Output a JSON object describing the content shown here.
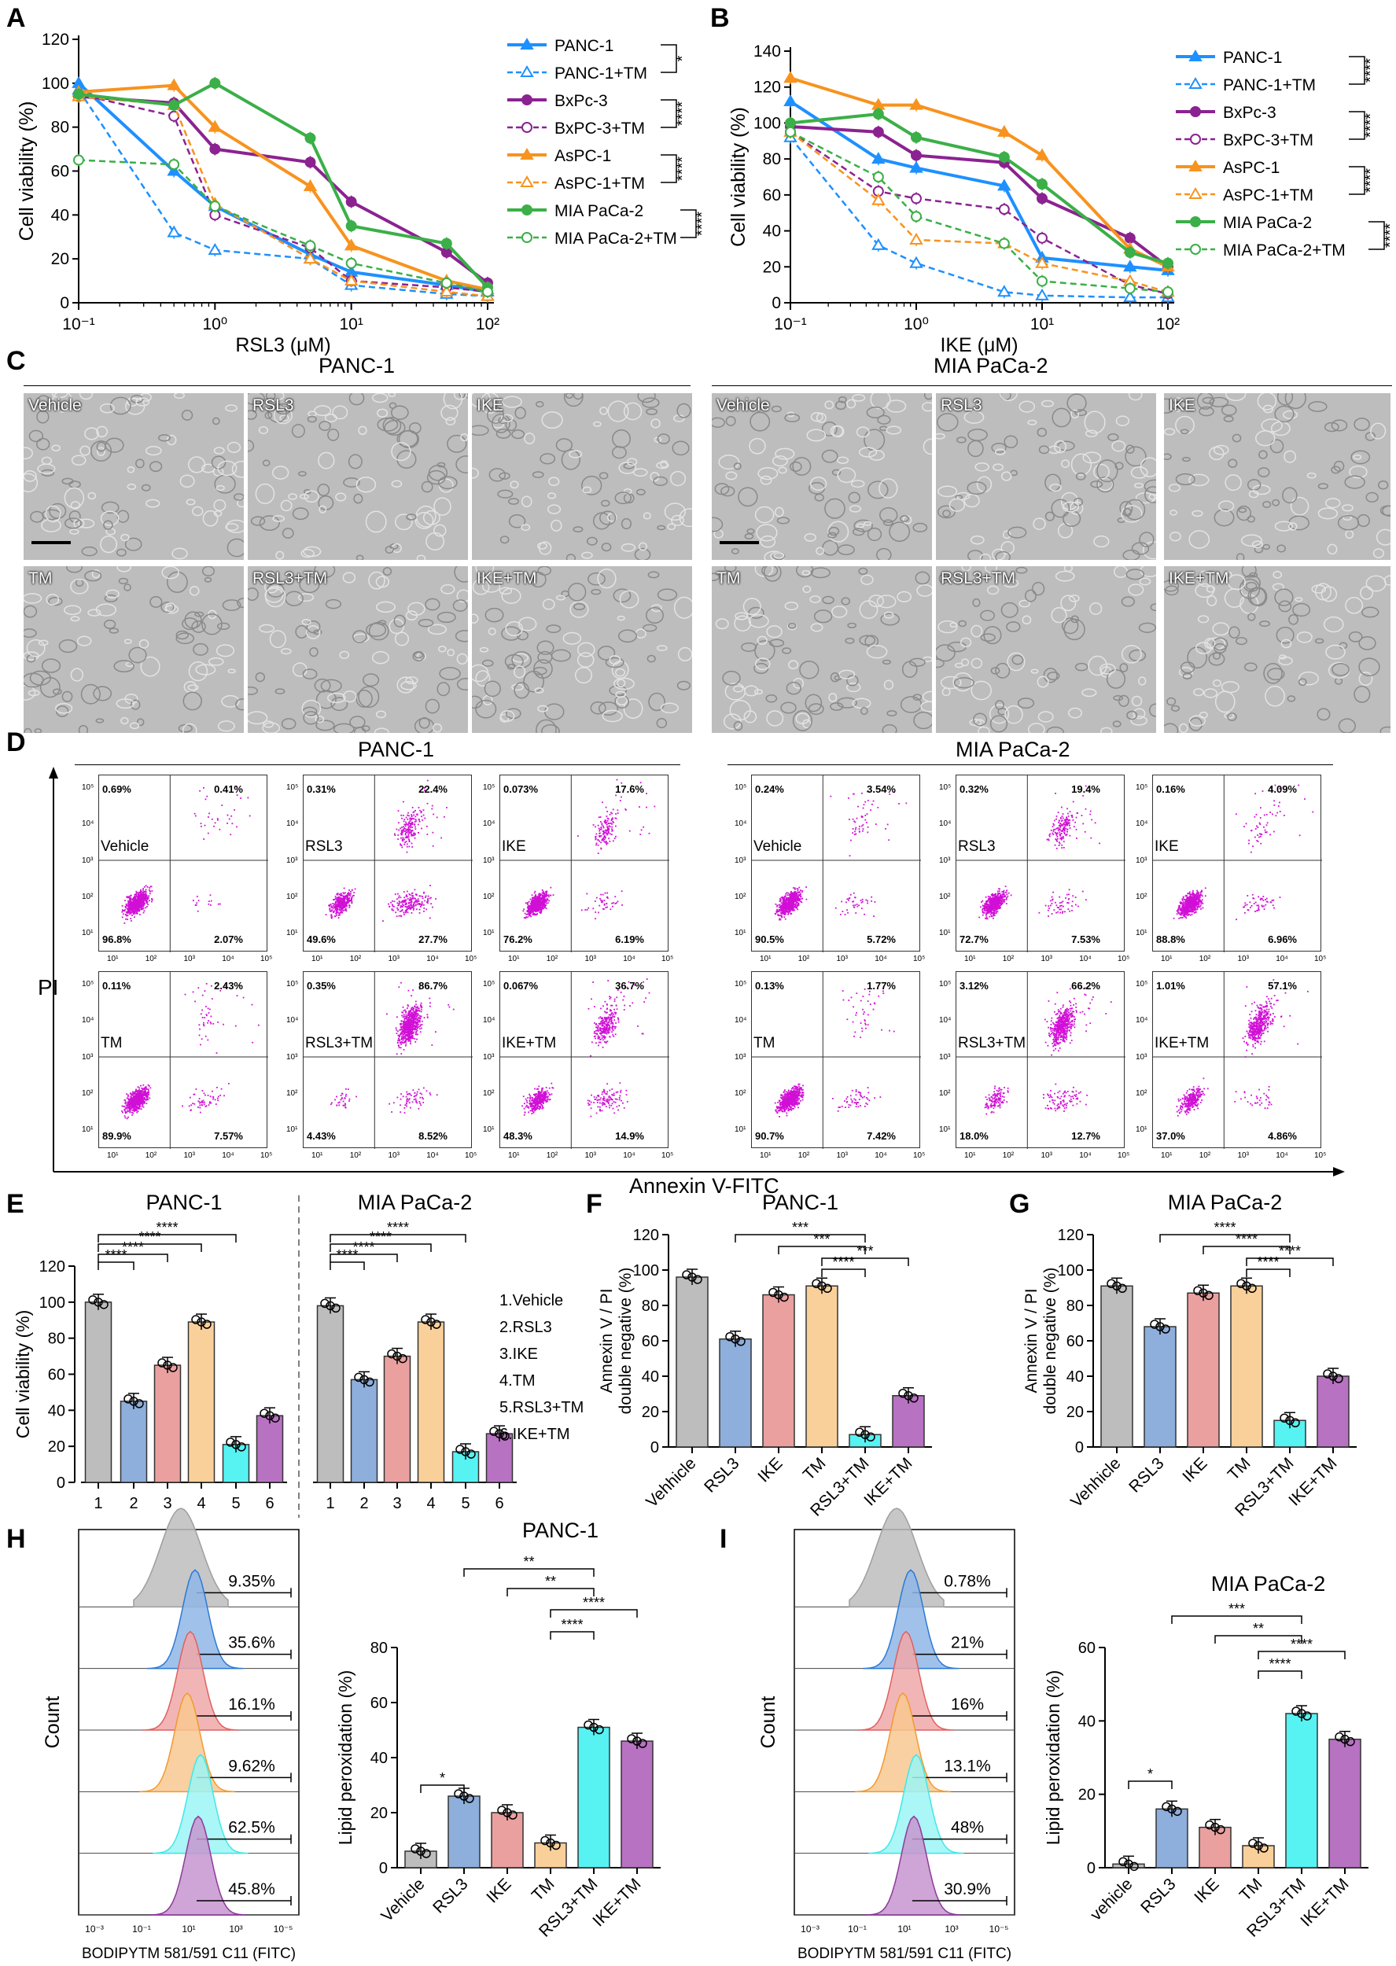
{
  "panels": {
    "A": "A",
    "B": "B",
    "C": "C",
    "D": "D",
    "E": "E",
    "F": "F",
    "G": "G",
    "H": "H",
    "I": "I"
  },
  "colors": {
    "panc1": "#1E90FF",
    "bxpc3": "#8B2291",
    "aspc1": "#F7931E",
    "miapaca2": "#3BAF48",
    "gray": "#BDBDBD",
    "blue": "#8EAEDB",
    "red": "#EBA0A0",
    "orange": "#FAD09A",
    "cyan": "#57F2F2",
    "purple": "#B772C2",
    "dot": "#D10FD6"
  },
  "legendA": [
    "PANC-1",
    "PANC-1+TM",
    "BxPc-3",
    "BxPC-3+TM",
    "AsPC-1",
    "AsPC-1+TM",
    "MIA PaCa-2",
    "MIA PaCa-2+TM"
  ],
  "legendB": [
    "PANC-1",
    "PANC-1+TM",
    "BxPc-3",
    "BxPC-3+TM",
    "AsPC-1",
    "AsPC-1+TM",
    "MIA PaCa-2",
    "MIA PaCa-2+TM"
  ],
  "sigA": [
    "*",
    "****",
    "****",
    "****"
  ],
  "sigB": [
    "****",
    "****",
    "****",
    "****"
  ],
  "chart_data": [
    {
      "panel": "A",
      "type": "line",
      "xlabel": "RSL3 (μM)",
      "ylabel": "Cell viability (%)",
      "xscale": "log",
      "xlim": [
        0.1,
        100
      ],
      "ylim": [
        0,
        120
      ],
      "yticks": [
        "0",
        "20",
        "40",
        "60",
        "80",
        "100",
        "120"
      ],
      "xticks": [
        "10⁻¹",
        "10⁰",
        "10¹",
        "10²"
      ],
      "x": [
        0.1,
        0.5,
        1,
        5,
        10,
        50,
        100
      ],
      "series": [
        {
          "name": "PANC-1",
          "values": [
            100,
            60,
            44,
            22,
            14,
            8,
            5
          ]
        },
        {
          "name": "PANC-1+TM",
          "values": [
            97,
            32,
            24,
            20,
            8,
            4,
            3
          ]
        },
        {
          "name": "BxPc-3",
          "values": [
            94,
            91,
            70,
            64,
            46,
            23,
            9
          ]
        },
        {
          "name": "BxPC-3+TM",
          "values": [
            95,
            85,
            40,
            25,
            10,
            7,
            5
          ]
        },
        {
          "name": "AsPC-1",
          "values": [
            96,
            99,
            80,
            53,
            26,
            10,
            6
          ]
        },
        {
          "name": "AsPC-1+TM",
          "values": [
            94,
            90,
            45,
            20,
            10,
            5,
            3
          ]
        },
        {
          "name": "MIA PaCa-2",
          "values": [
            95,
            90,
            100,
            75,
            35,
            27,
            7
          ]
        },
        {
          "name": "MIA PaCa-2+TM",
          "values": [
            65,
            63,
            44,
            26,
            18,
            9,
            5
          ]
        }
      ]
    },
    {
      "panel": "B",
      "type": "line",
      "xlabel": "IKE (μM)",
      "ylabel": "Cell viability (%)",
      "xscale": "log",
      "xlim": [
        0.1,
        100
      ],
      "ylim": [
        0,
        140
      ],
      "yticks": [
        "0",
        "20",
        "40",
        "60",
        "80",
        "100",
        "120",
        "140"
      ],
      "xticks": [
        "10⁻¹",
        "10⁰",
        "10¹",
        "10²"
      ],
      "x": [
        0.1,
        0.5,
        1,
        5,
        10,
        50,
        100
      ],
      "series": [
        {
          "name": "PANC-1",
          "values": [
            112,
            80,
            75,
            65,
            25,
            20,
            18
          ]
        },
        {
          "name": "PANC-1+TM",
          "values": [
            92,
            32,
            22,
            6,
            4,
            3,
            3
          ]
        },
        {
          "name": "BxPc-3",
          "values": [
            98,
            95,
            82,
            78,
            58,
            36,
            20
          ]
        },
        {
          "name": "BxPC-3+TM",
          "values": [
            95,
            62,
            58,
            52,
            36,
            10,
            5
          ]
        },
        {
          "name": "AsPC-1",
          "values": [
            125,
            110,
            110,
            95,
            82,
            30,
            20
          ]
        },
        {
          "name": "AsPC-1+TM",
          "values": [
            95,
            57,
            35,
            33,
            22,
            12,
            6
          ]
        },
        {
          "name": "MIA PaCa-2",
          "values": [
            100,
            105,
            92,
            81,
            66,
            28,
            22
          ]
        },
        {
          "name": "MIA PaCa-2+TM",
          "values": [
            95,
            70,
            48,
            33,
            12,
            8,
            6
          ]
        }
      ]
    },
    {
      "panel": "E",
      "type": "bar",
      "ylabel": "Cell viability (%)",
      "ylim": [
        0,
        120
      ],
      "yticks": [
        "0",
        "20",
        "40",
        "60",
        "80",
        "100",
        "120"
      ],
      "groups": [
        {
          "title": "PANC-1",
          "categories": [
            "1",
            "2",
            "3",
            "4",
            "5",
            "6"
          ],
          "values": [
            100,
            45,
            65,
            89,
            21,
            37
          ]
        },
        {
          "title": "MIA PaCa-2",
          "categories": [
            "1",
            "2",
            "3",
            "4",
            "5",
            "6"
          ],
          "values": [
            98,
            57,
            70,
            89,
            17,
            27
          ]
        }
      ],
      "legend": [
        "1.Vehicle",
        "2.RSL3",
        "3.IKE",
        "4.TM",
        "5.RSL3+TM",
        "6.IKE+TM"
      ],
      "sig": [
        "****",
        "****",
        "****",
        "****",
        "****",
        "****",
        "****",
        "****"
      ]
    },
    {
      "panel": "F",
      "type": "bar",
      "title": "PANC-1",
      "ylabel": "Annexin V / PI double negative (%)",
      "ylim": [
        0,
        120
      ],
      "yticks": [
        "0",
        "20",
        "40",
        "60",
        "80",
        "100",
        "120"
      ],
      "categories": [
        "Vehhicle",
        "RSL3",
        "IKE",
        "TM",
        "RSL3+TM",
        "IKE+TM"
      ],
      "values": [
        96,
        61,
        86,
        91,
        7,
        29
      ],
      "sig": [
        "***",
        "***",
        "***",
        "****"
      ]
    },
    {
      "panel": "G",
      "type": "bar",
      "title": "MIA PaCa-2",
      "ylabel": "Annexin V / PI double negative (%)",
      "ylim": [
        0,
        120
      ],
      "yticks": [
        "0",
        "20",
        "40",
        "60",
        "80",
        "100",
        "120"
      ],
      "categories": [
        "Vehhicle",
        "RSL3",
        "IKE",
        "TM",
        "RSL3+TM",
        "IKE+TM"
      ],
      "values": [
        91,
        68,
        87,
        91,
        15,
        40
      ],
      "sig": [
        "****",
        "****",
        "****",
        "****"
      ]
    },
    {
      "panel": "H",
      "type": "bar",
      "title": "PANC-1",
      "ylabel": "Lipid peroxidation (%)",
      "ylim": [
        0,
        80
      ],
      "yticks": [
        "0",
        "20",
        "40",
        "60",
        "80"
      ],
      "categories": [
        "Vehicle",
        "RSL3",
        "IKE",
        "TM",
        "RSL3+TM",
        "IKE+TM"
      ],
      "values": [
        6,
        26,
        20,
        9,
        51,
        46
      ],
      "sig": [
        "*",
        "**",
        "**",
        "****",
        "****"
      ]
    },
    {
      "panel": "I",
      "type": "bar",
      "title": "MIA PaCa-2",
      "ylabel": "Lipid peroxidation (%)",
      "ylim": [
        0,
        60
      ],
      "yticks": [
        "0",
        "20",
        "40",
        "60"
      ],
      "categories": [
        "vehicle",
        "RSL3",
        "IKE",
        "TM",
        "RSL3+TM",
        "IKE+TM"
      ],
      "values": [
        1,
        16,
        11,
        6,
        42,
        35
      ],
      "sig": [
        "*",
        "***",
        "**",
        "****",
        "****"
      ]
    }
  ],
  "panelC": {
    "titles": [
      "PANC-1",
      "MIA PaCa-2"
    ],
    "labels": [
      "Vehicle",
      "RSL3",
      "IKE",
      "TM",
      "RSL3+TM",
      "IKE+TM"
    ]
  },
  "panelD": {
    "titles": [
      "PANC-1",
      "MIA PaCa-2"
    ],
    "ylabel": "PI",
    "xlabel": "Annexin V-FITC",
    "axis_ticks": {
      "x": [
        "10¹",
        "10²",
        "10³",
        "10⁴",
        "10⁵"
      ],
      "y": [
        "10¹",
        "10²",
        "10³",
        "10⁴",
        "10⁵"
      ]
    },
    "plots": [
      {
        "cell": "PANC-1",
        "label": "Vehicle",
        "q": [
          "0.69%",
          "0.41%",
          "96.8%",
          "2.07%"
        ]
      },
      {
        "cell": "PANC-1",
        "label": "RSL3",
        "q": [
          "0.31%",
          "22.4%",
          "49.6%",
          "27.7%"
        ]
      },
      {
        "cell": "PANC-1",
        "label": "IKE",
        "q": [
          "0.073%",
          "17.6%",
          "76.2%",
          "6.19%"
        ]
      },
      {
        "cell": "PANC-1",
        "label": "TM",
        "q": [
          "0.11%",
          "2.43%",
          "89.9%",
          "7.57%"
        ]
      },
      {
        "cell": "PANC-1",
        "label": "RSL3+TM",
        "q": [
          "0.35%",
          "86.7%",
          "4.43%",
          "8.52%"
        ]
      },
      {
        "cell": "PANC-1",
        "label": "IKE+TM",
        "q": [
          "0.067%",
          "36.7%",
          "48.3%",
          "14.9%"
        ]
      },
      {
        "cell": "MIA PaCa-2",
        "label": "Vehicle",
        "q": [
          "0.24%",
          "3.54%",
          "90.5%",
          "5.72%"
        ]
      },
      {
        "cell": "MIA PaCa-2",
        "label": "RSL3",
        "q": [
          "0.32%",
          "19.4%",
          "72.7%",
          "7.53%"
        ]
      },
      {
        "cell": "MIA PaCa-2",
        "label": "IKE",
        "q": [
          "0.16%",
          "4.09%",
          "88.8%",
          "6.96%"
        ]
      },
      {
        "cell": "MIA PaCa-2",
        "label": "TM",
        "q": [
          "0.13%",
          "1.77%",
          "90.7%",
          "7.42%"
        ]
      },
      {
        "cell": "MIA PaCa-2",
        "label": "RSL3+TM",
        "q": [
          "3.12%",
          "66.2%",
          "18.0%",
          "12.7%"
        ]
      },
      {
        "cell": "MIA PaCa-2",
        "label": "IKE+TM",
        "q": [
          "1.01%",
          "57.1%",
          "37.0%",
          "4.86%"
        ]
      }
    ]
  },
  "histH": {
    "ylabel": "Count",
    "xlabel": "BODIPYTM 581/591 C11 (FITC)",
    "pcts": [
      "9.35%",
      "35.6%",
      "16.1%",
      "9.62%",
      "62.5%",
      "45.8%"
    ],
    "ticks": [
      "10⁻³",
      "10⁻¹",
      "10¹",
      "10³",
      "10⁻⁵"
    ]
  },
  "histI": {
    "ylabel": "Count",
    "xlabel": "BODIPYTM 581/591 C11 (FITC)",
    "pcts": [
      "0.78%",
      "21%",
      "16%",
      "13.1%",
      "48%",
      "30.9%"
    ],
    "ticks": [
      "10⁻³",
      "10⁻¹",
      "10¹",
      "10³",
      "10⁻⁵"
    ]
  }
}
